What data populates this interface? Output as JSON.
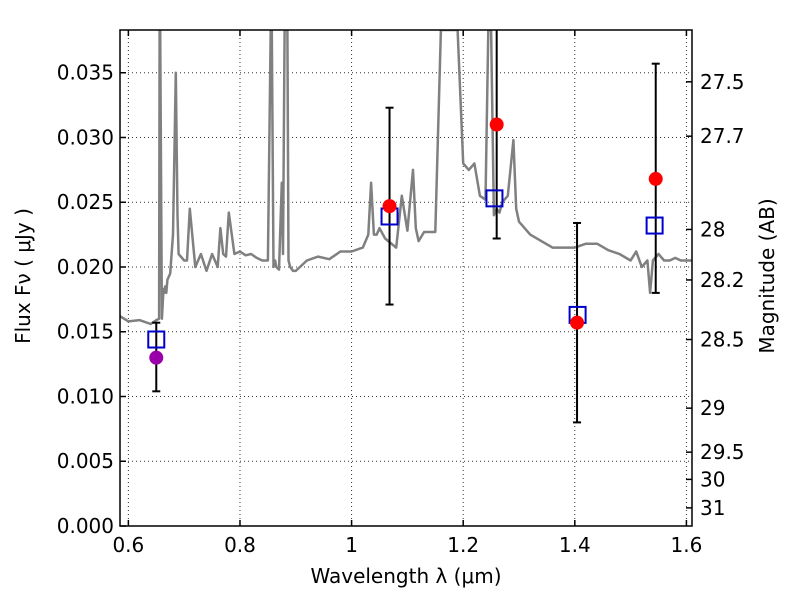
{
  "chart_data": {
    "type": "scatter",
    "xlabel": "Wavelength  λ (μm)",
    "ylabel": "Flux  Fν  ( μJy )",
    "y2label": "Magnitude (AB)",
    "xlim": [
      0.585,
      1.61
    ],
    "ylim": [
      0.0,
      0.0383
    ],
    "grid": true,
    "x_ticks": [
      0.6,
      0.8,
      1.0,
      1.2,
      1.4,
      1.6
    ],
    "x_tick_labels": [
      "0.6",
      "0.8",
      "1",
      "1.2",
      "1.4",
      "1.6"
    ],
    "y_ticks": [
      0.0,
      0.005,
      0.01,
      0.015,
      0.02,
      0.025,
      0.03,
      0.035
    ],
    "y_tick_labels": [
      "0.000",
      "0.005",
      "0.010",
      "0.015",
      "0.020",
      "0.025",
      "0.030",
      "0.035"
    ],
    "y2_ticks": [
      {
        "flux": 0.0343,
        "label": "27.5"
      },
      {
        "flux": 0.0301,
        "label": "27.7"
      },
      {
        "flux": 0.0229,
        "label": "28"
      },
      {
        "flux": 0.019,
        "label": "28.2"
      },
      {
        "flux": 0.0144,
        "label": "28.5"
      },
      {
        "flux": 0.0091,
        "label": "29"
      },
      {
        "flux": 0.0057,
        "label": "29.5"
      },
      {
        "flux": 0.0036,
        "label": "30"
      },
      {
        "flux": 0.0014,
        "label": "31"
      }
    ],
    "colors": {
      "spectrum": "#808080",
      "model_square": "#0000cc",
      "observed": "#ff0000",
      "observed_first": "#9900aa",
      "errorbar": "#000000"
    },
    "spectrum": {
      "x": [
        0.585,
        0.6,
        0.62,
        0.64,
        0.65,
        0.655,
        0.656,
        0.657,
        0.66,
        0.663,
        0.664,
        0.666,
        0.668,
        0.67,
        0.675,
        0.68,
        0.685,
        0.688,
        0.69,
        0.7,
        0.705,
        0.71,
        0.72,
        0.73,
        0.74,
        0.75,
        0.76,
        0.765,
        0.77,
        0.775,
        0.78,
        0.79,
        0.8,
        0.81,
        0.82,
        0.83,
        0.84,
        0.85,
        0.855,
        0.857,
        0.86,
        0.863,
        0.865,
        0.87,
        0.875,
        0.877,
        0.88,
        0.885,
        0.887,
        0.89,
        0.895,
        0.9,
        0.92,
        0.94,
        0.96,
        0.98,
        1.0,
        1.02,
        1.03,
        1.035,
        1.04,
        1.045,
        1.05,
        1.06,
        1.08,
        1.09,
        1.1,
        1.11,
        1.115,
        1.12,
        1.13,
        1.15,
        1.16,
        1.17,
        1.18,
        1.19,
        1.2,
        1.21,
        1.22,
        1.23,
        1.24,
        1.245,
        1.25,
        1.255,
        1.26,
        1.265,
        1.27,
        1.28,
        1.29,
        1.295,
        1.3,
        1.32,
        1.34,
        1.36,
        1.38,
        1.4,
        1.42,
        1.44,
        1.46,
        1.48,
        1.5,
        1.51,
        1.52,
        1.53,
        1.535,
        1.54,
        1.55,
        1.56,
        1.57,
        1.58,
        1.59,
        1.6,
        1.61
      ],
      "y": [
        0.0162,
        0.0158,
        0.0159,
        0.0156,
        0.0159,
        0.016,
        0.0383,
        0.0383,
        0.016,
        0.0183,
        0.018,
        0.0185,
        0.018,
        0.019,
        0.0195,
        0.0225,
        0.035,
        0.024,
        0.021,
        0.0205,
        0.0205,
        0.0245,
        0.02,
        0.021,
        0.0197,
        0.021,
        0.02,
        0.023,
        0.021,
        0.0208,
        0.0242,
        0.021,
        0.0212,
        0.0209,
        0.021,
        0.0207,
        0.0205,
        0.0205,
        0.0383,
        0.0383,
        0.02,
        0.0205,
        0.02,
        0.0198,
        0.0265,
        0.021,
        0.0383,
        0.0383,
        0.0205,
        0.02,
        0.0197,
        0.0197,
        0.0205,
        0.0208,
        0.0206,
        0.0212,
        0.0212,
        0.0215,
        0.0225,
        0.0265,
        0.0225,
        0.0225,
        0.023,
        0.0222,
        0.0215,
        0.0255,
        0.0228,
        0.0275,
        0.023,
        0.022,
        0.0227,
        0.0227,
        0.0383,
        0.0383,
        0.0383,
        0.0383,
        0.028,
        0.0275,
        0.028,
        0.0255,
        0.0252,
        0.0383,
        0.0383,
        0.024,
        0.0245,
        0.0242,
        0.025,
        0.0255,
        0.0298,
        0.0245,
        0.0235,
        0.0225,
        0.022,
        0.0215,
        0.0215,
        0.0215,
        0.0218,
        0.0218,
        0.0213,
        0.021,
        0.0205,
        0.0212,
        0.02,
        0.0205,
        0.018,
        0.0205,
        0.021,
        0.0205,
        0.0205,
        0.0207,
        0.0205,
        0.0205,
        0.0205
      ]
    },
    "model_points": {
      "x": [
        0.65,
        1.068,
        1.256,
        1.405,
        1.543
      ],
      "y": [
        0.0144,
        0.0239,
        0.0253,
        0.0163,
        0.0232
      ]
    },
    "observed_points": {
      "x": [
        0.65,
        1.068,
        1.26,
        1.404,
        1.545
      ],
      "y": [
        0.013,
        0.0247,
        0.031,
        0.0157,
        0.0268
      ],
      "err_low": [
        0.0104,
        0.0171,
        0.0222,
        0.008,
        0.018
      ],
      "err_high": [
        0.0157,
        0.0323,
        0.0383,
        0.0234,
        0.0357
      ]
    }
  }
}
